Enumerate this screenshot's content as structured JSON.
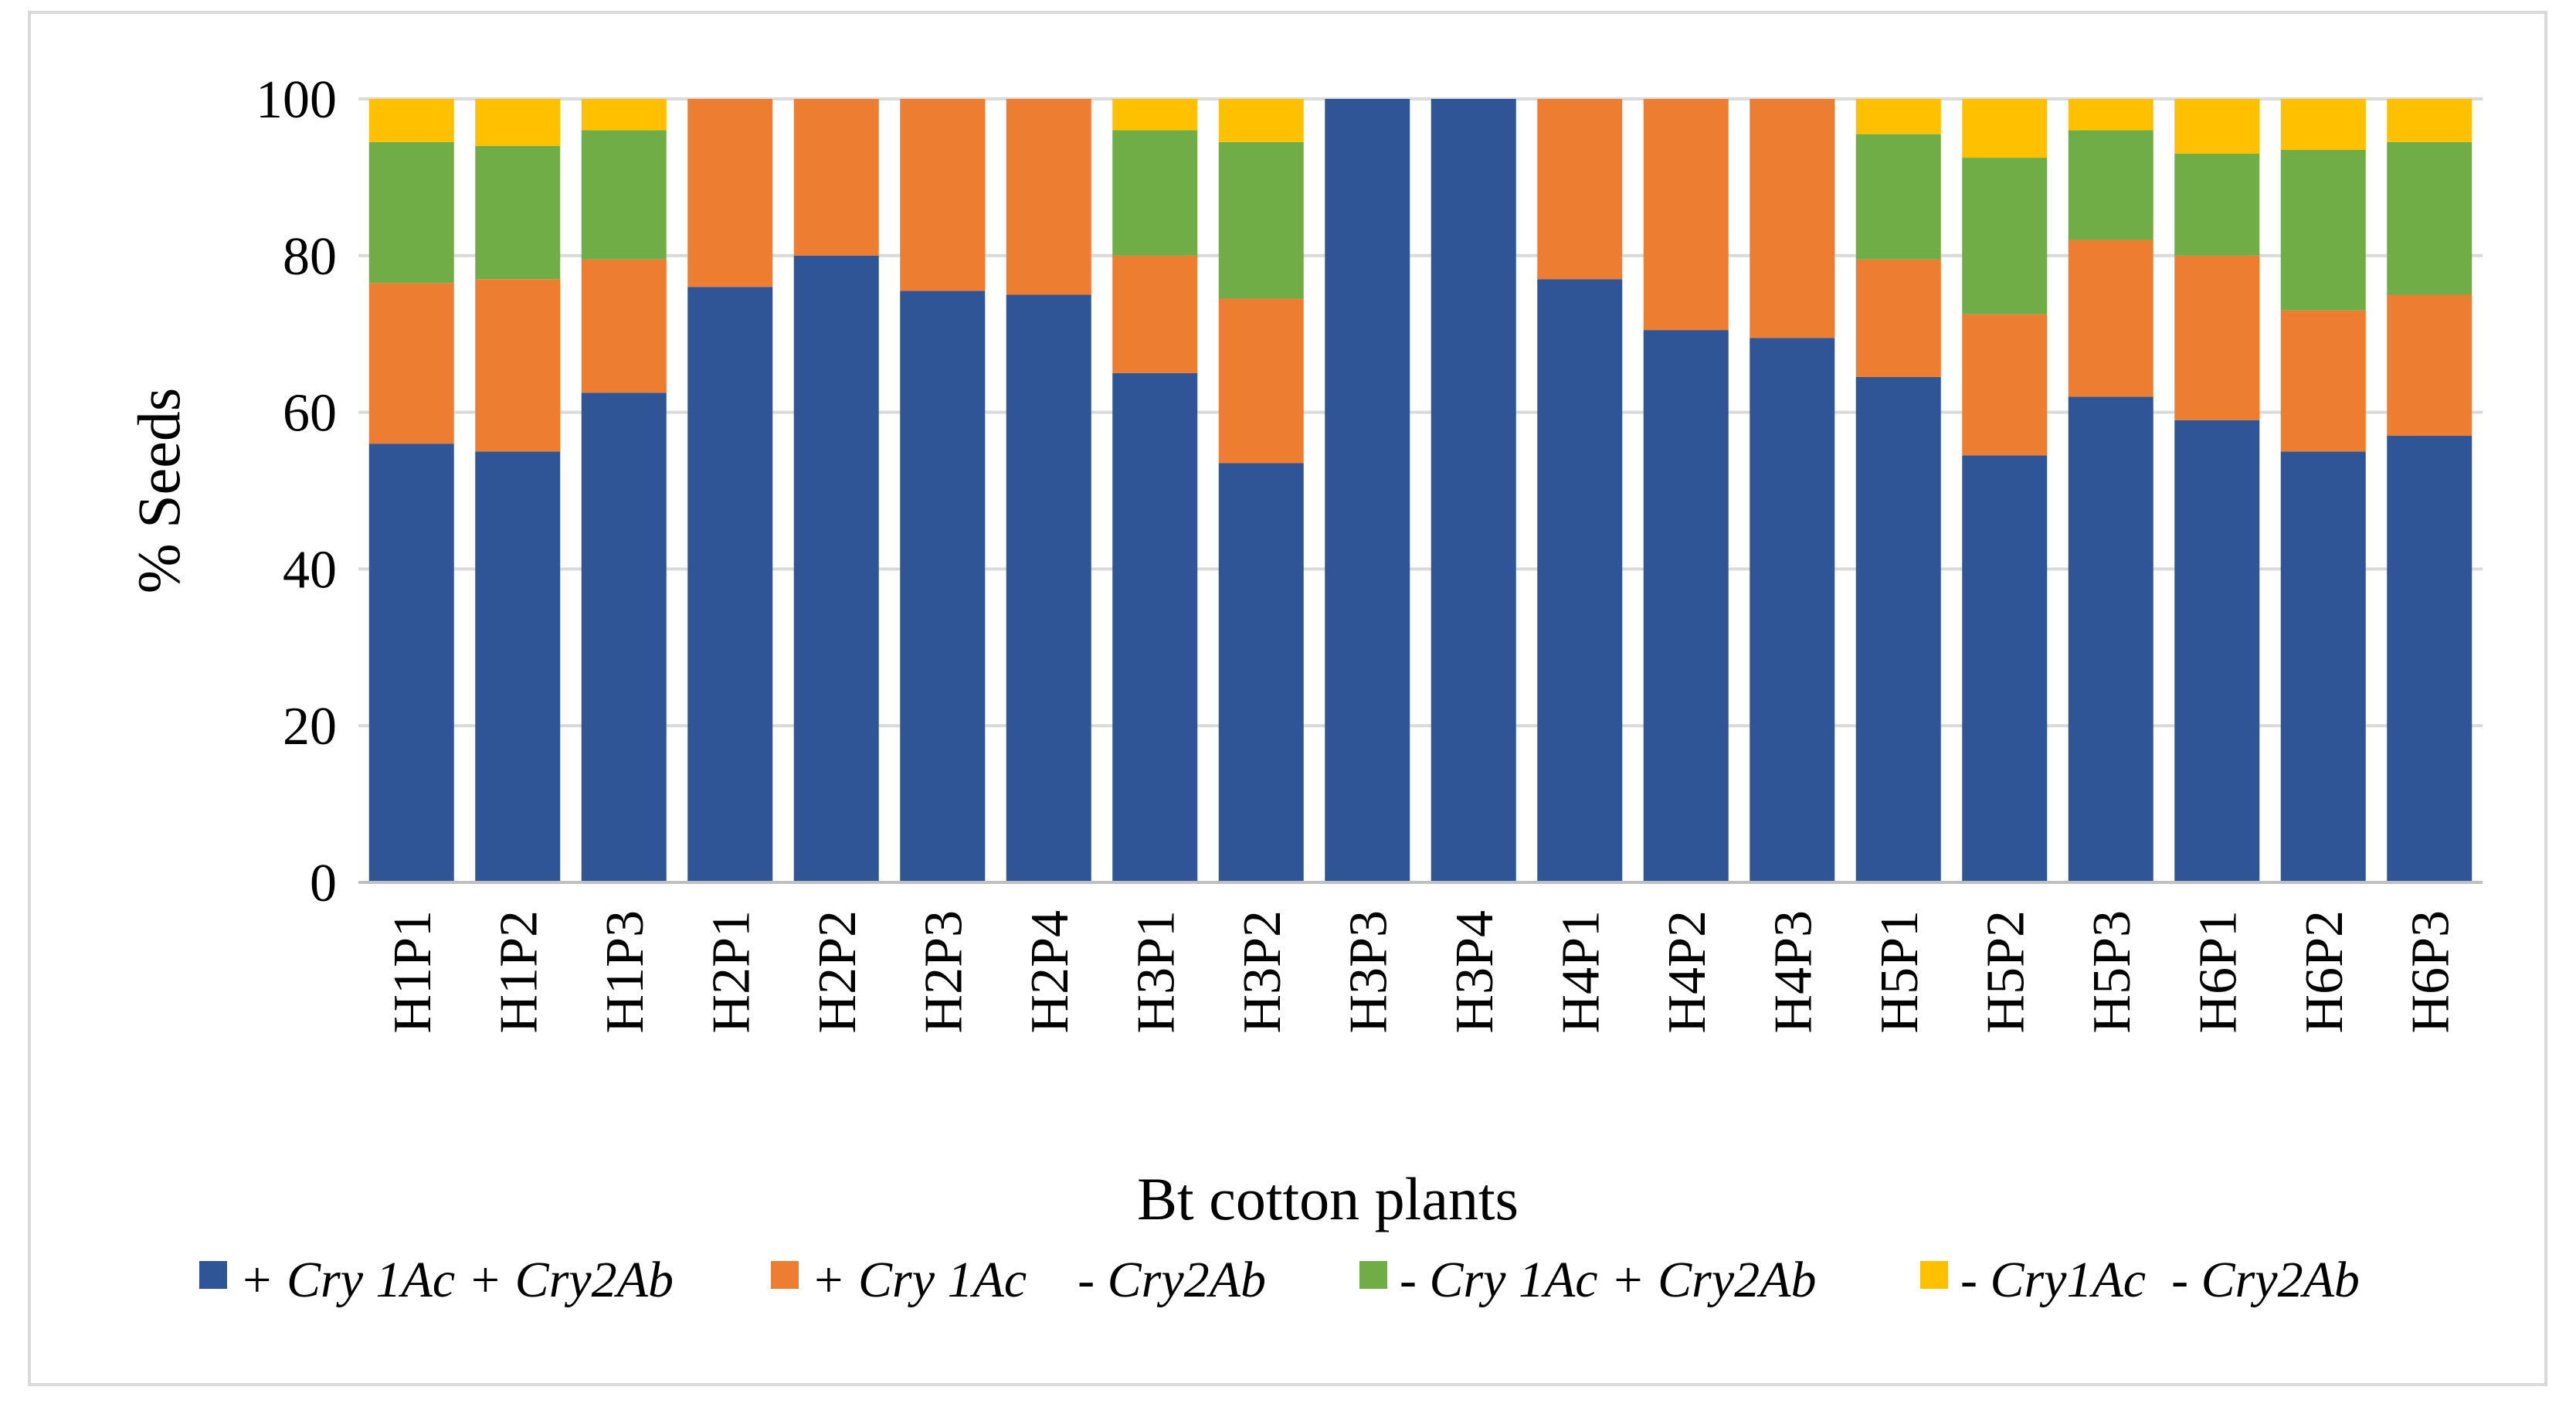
{
  "chart_data": {
    "type": "bar",
    "stacked": true,
    "title": "",
    "xlabel": "Bt cotton plants",
    "ylabel": "% Seeds",
    "ylim": [
      0,
      100
    ],
    "yticks": [
      0,
      20,
      40,
      60,
      80,
      100
    ],
    "grid": true,
    "legend_position": "bottom",
    "categories": [
      "H1P1",
      "H1P2",
      "H1P3",
      "H2P1",
      "H2P2",
      "H2P3",
      "H2P4",
      "H3P1",
      "H3P2",
      "H3P3",
      "H3P4",
      "H4P1",
      "H4P2",
      "H4P3",
      "H5P1",
      "H5P2",
      "H5P3",
      "H6P1",
      "H6P2",
      "H6P3"
    ],
    "series": [
      {
        "name": "+ Cry 1Ac + Cry2Ab",
        "color": "#2f5597",
        "values": [
          56,
          55,
          62.5,
          76,
          80,
          75.5,
          75,
          65,
          53.5,
          100,
          100,
          77,
          70.5,
          69.5,
          64.5,
          54.5,
          62,
          59,
          55,
          57
        ]
      },
      {
        "name": "+ Cry 1Ac    - Cry2Ab",
        "color": "#ed7d31",
        "values": [
          20.5,
          22,
          17,
          24,
          20,
          24.5,
          25,
          15,
          21,
          0,
          0,
          23,
          29.5,
          30.5,
          15,
          18,
          20,
          21,
          18,
          18
        ]
      },
      {
        "name": "- Cry 1Ac + Cry2Ab",
        "color": "#70ad47",
        "values": [
          18,
          17,
          16.5,
          0,
          0,
          0,
          0,
          16,
          20,
          0,
          0,
          0,
          0,
          0,
          16,
          20,
          14,
          13,
          20.5,
          19.5
        ]
      },
      {
        "name": "- Cry1Ac  - Cry2Ab",
        "color": "#ffc000",
        "values": [
          5.5,
          6,
          4,
          0,
          0,
          0,
          0,
          4,
          5.5,
          0,
          0,
          0,
          0,
          0,
          4.5,
          7.5,
          4,
          7,
          6.5,
          5.5
        ]
      }
    ]
  }
}
